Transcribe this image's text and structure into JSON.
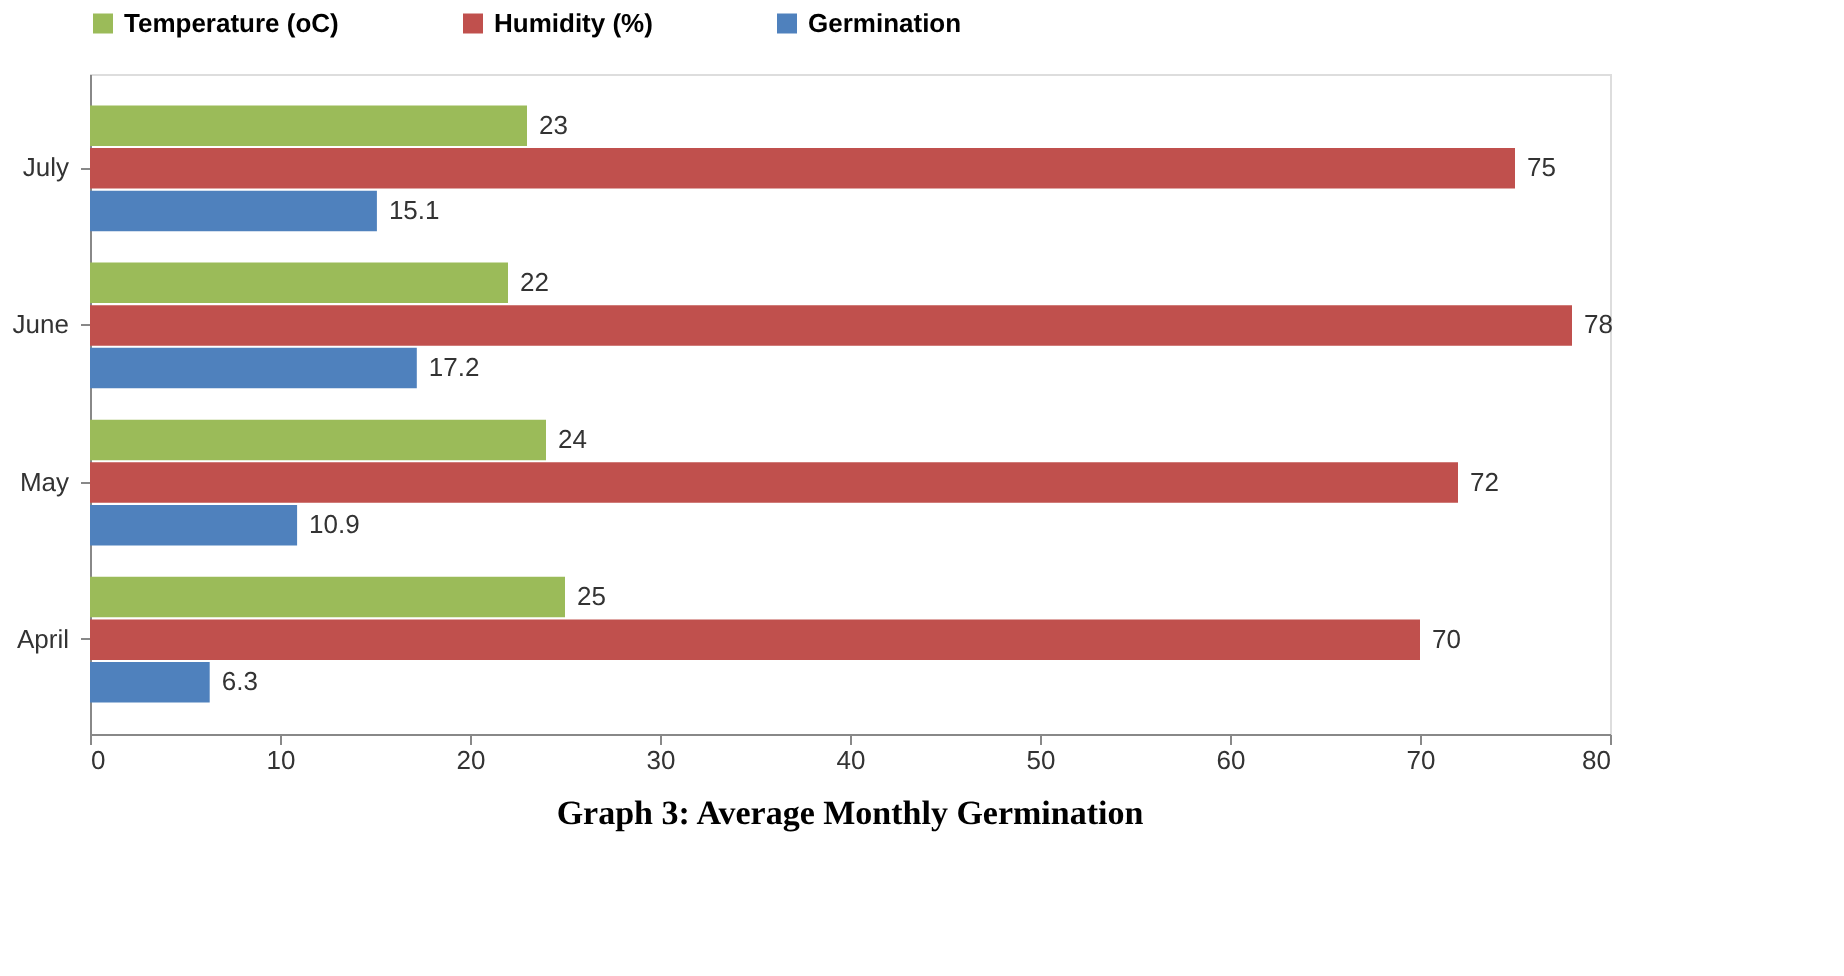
{
  "chart_data": {
    "type": "bar",
    "orientation": "horizontal",
    "title": "Graph 3: Average Monthly Germination",
    "categories": [
      "July",
      "June",
      "May",
      "April"
    ],
    "series": [
      {
        "name": "Temperature (oC)",
        "color": "#9bbb59",
        "values": [
          23,
          22,
          24,
          25
        ]
      },
      {
        "name": "Humidity (%)",
        "color": "#c0504d",
        "values": [
          75,
          78,
          72,
          70
        ]
      },
      {
        "name": "Germination",
        "color": "#4f81bd",
        "values": [
          15.1,
          17.2,
          10.9,
          6.3
        ]
      }
    ],
    "xlim": [
      0,
      80
    ],
    "xticks": [
      0,
      10,
      20,
      30,
      40,
      50,
      60,
      70,
      80
    ],
    "grid": false,
    "legend": "top",
    "data_labels": true
  }
}
